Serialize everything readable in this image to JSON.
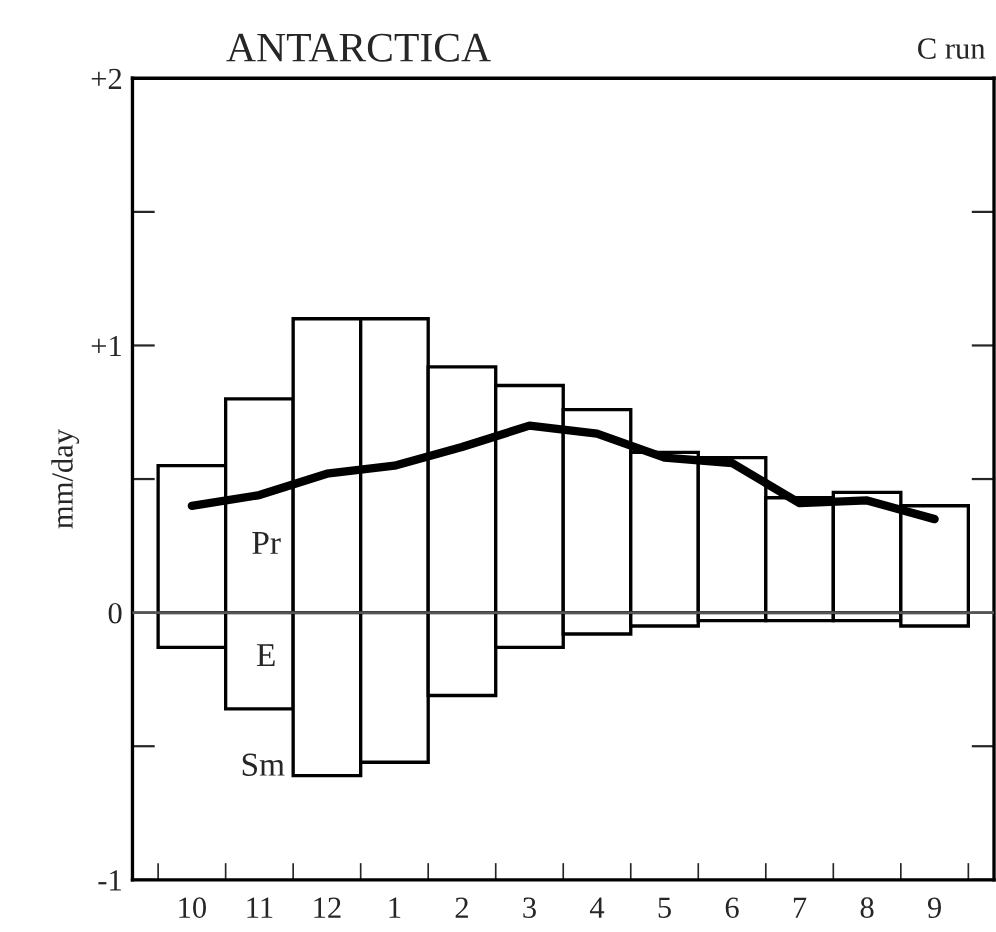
{
  "chart_data": {
    "type": "bar",
    "title": "ANTARCTICA",
    "subtitle": "C run",
    "ylabel": "mm/day",
    "categories": [
      "10",
      "11",
      "12",
      "1",
      "2",
      "3",
      "4",
      "5",
      "6",
      "7",
      "8",
      "9"
    ],
    "series": [
      {
        "color": "#ffffff",
        "values": [
          0.55,
          0.8,
          1.1,
          1.1,
          0.92,
          0.85,
          0.76,
          0.6,
          0.58,
          0.43,
          0.45,
          0.4
        ]
      },
      {
        "color": "#ffffff",
        "values": [
          -0.13,
          -0.36,
          -0.61,
          -0.56,
          -0.31,
          -0.13,
          -0.08,
          -0.05,
          -0.03,
          -0.03,
          -0.03,
          -0.05
        ]
      },
      {
        "type": "line",
        "color": "#000000",
        "values": [
          0.4,
          0.44,
          0.52,
          0.55,
          0.62,
          0.7,
          0.67,
          0.58,
          0.56,
          0.41,
          0.42,
          0.35
        ]
      }
    ],
    "annotations": [
      "Pr",
      "E",
      "Sm"
    ],
    "ylim": [
      -1,
      2
    ],
    "yticks": [
      {
        "value": -1,
        "label": "-1"
      },
      {
        "value": -0.5,
        "label": null
      },
      {
        "value": 0,
        "label": "0"
      },
      {
        "value": 0.5,
        "label": null
      },
      {
        "value": 1,
        "label": "+1"
      },
      {
        "value": 1.5,
        "label": null
      },
      {
        "value": 2,
        "label": "+2"
      }
    ],
    "ref_lines": [
      {
        "axis": "y",
        "value": 0,
        "color": "#555555"
      }
    ],
    "stacked": true,
    "grid": false,
    "legend": false
  }
}
